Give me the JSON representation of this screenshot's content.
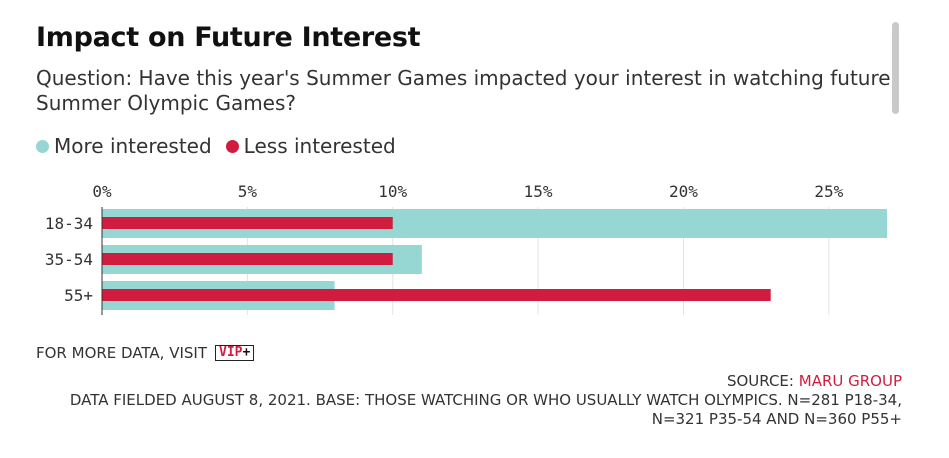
{
  "title": "Impact on Future Interest",
  "subtitle": "Question: Have this year's Summer Games impacted your interest in watching future Summer Olympic Games?",
  "legend": [
    {
      "label": "More interested",
      "color": "#96d6d3"
    },
    {
      "label": "Less interested",
      "color": "#d01c3f"
    }
  ],
  "footer": {
    "more_data": "FOR MORE DATA, VISIT",
    "vip_text": "VIP",
    "vip_plus": "+",
    "source_prefix": "SOURCE:",
    "source_name": "MARU GROUP",
    "note": "DATA FIELDED AUGUST 8, 2021. BASE: THOSE WATCHING OR WHO USUALLY WATCH OLYMPICS. N=281 P18-34, N=321 P35-54 AND N=360 P55+"
  },
  "chart_data": {
    "type": "bar",
    "orientation": "horizontal",
    "categories": [
      "18-34",
      "35-54",
      "55+"
    ],
    "series": [
      {
        "name": "More interested",
        "values": [
          27,
          11,
          8
        ],
        "color": "#96d6d3"
      },
      {
        "name": "Less interested",
        "values": [
          10,
          10,
          23
        ],
        "color": "#d01c3f"
      }
    ],
    "xlim": [
      0,
      27
    ],
    "xticks": [
      0,
      5,
      10,
      15,
      20,
      25
    ],
    "tick_format": "%",
    "grid": true,
    "legend_position": "top-left"
  }
}
